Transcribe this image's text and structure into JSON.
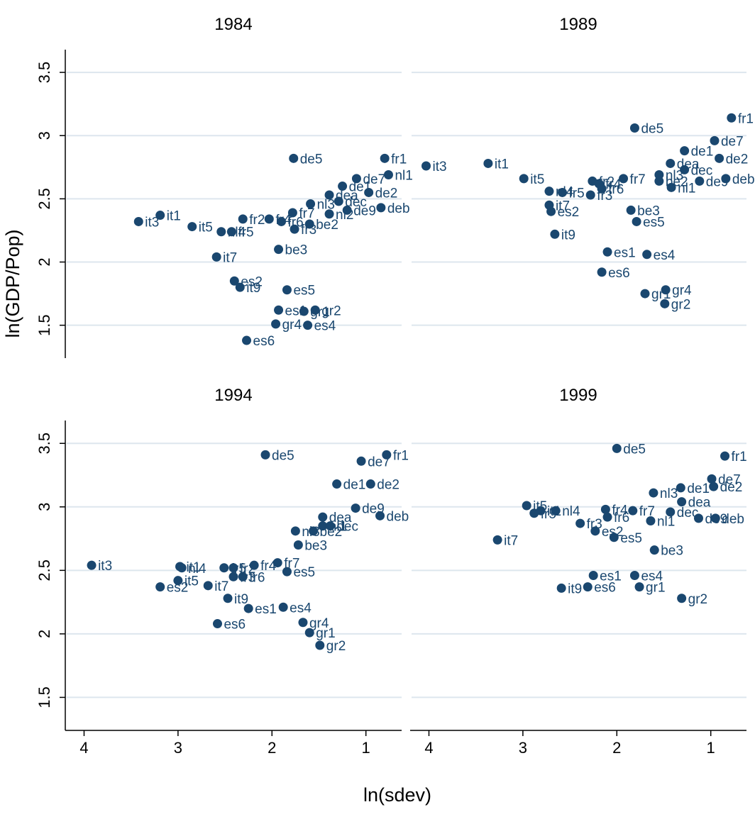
{
  "ylabel": "ln(GDP/Pop)",
  "xlabel": "ln(sdev)",
  "chart_data": [
    {
      "type": "scatter",
      "title": "1984",
      "color": "#1a476f",
      "grid": true,
      "xlim": [
        4.2,
        0.62
      ],
      "ylim": [
        1.24,
        3.68
      ],
      "xticks": [
        4,
        3,
        2,
        1
      ],
      "yticks": [
        1.5,
        2,
        2.5,
        3,
        3.5
      ],
      "labels": [
        "it3",
        "it1",
        "it5",
        "nl4",
        "fr5",
        "it7",
        "fr2",
        "fr4",
        "es2",
        "it9",
        "de5",
        "fr7",
        "fr6",
        "fr3",
        "nl3",
        "be2",
        "be3",
        "es5",
        "es1",
        "gr1",
        "gr2",
        "gr4",
        "es4",
        "es6",
        "dea",
        "dec",
        "de1",
        "nl2",
        "de9",
        "de7",
        "de2",
        "deb",
        "fr1",
        "nl1"
      ],
      "x": [
        3.42,
        3.19,
        2.85,
        2.54,
        2.43,
        2.59,
        2.31,
        2.03,
        2.4,
        2.34,
        1.77,
        1.78,
        1.9,
        1.76,
        1.59,
        1.6,
        1.93,
        1.84,
        1.93,
        1.66,
        1.54,
        1.96,
        1.62,
        2.27,
        1.39,
        1.29,
        1.25,
        1.39,
        1.2,
        1.1,
        0.97,
        0.84,
        0.8,
        0.76
      ],
      "y": [
        2.32,
        2.37,
        2.28,
        2.24,
        2.24,
        2.04,
        2.34,
        2.34,
        1.85,
        1.8,
        2.82,
        2.39,
        2.32,
        2.26,
        2.46,
        2.3,
        2.1,
        1.78,
        1.62,
        1.61,
        1.62,
        1.51,
        1.5,
        1.38,
        2.53,
        2.48,
        2.6,
        2.38,
        2.41,
        2.66,
        2.55,
        2.43,
        2.82,
        2.69
      ]
    },
    {
      "type": "scatter",
      "title": "1989",
      "color": "#1a476f",
      "grid": true,
      "xlim": [
        4.2,
        0.62
      ],
      "ylim": [
        1.24,
        3.68
      ],
      "xticks": [
        4,
        3,
        2,
        1
      ],
      "yticks": [
        1.5,
        2,
        2.5,
        3,
        3.5
      ],
      "labels": [
        "it3",
        "it1",
        "it5",
        "nl4",
        "fr5",
        "it7",
        "es2",
        "it9",
        "fr2",
        "fr4",
        "fr3",
        "fr6",
        "fr7",
        "de5",
        "be3",
        "es5",
        "es1",
        "es4",
        "es6",
        "gr1",
        "gr4",
        "gr2",
        "nl3",
        "be2",
        "dea",
        "de1",
        "dec",
        "nl1",
        "de9",
        "fr1",
        "de7",
        "de2",
        "deb"
      ],
      "x": [
        4.03,
        3.37,
        2.99,
        2.72,
        2.58,
        2.72,
        2.7,
        2.66,
        2.26,
        2.19,
        2.28,
        2.16,
        1.93,
        1.81,
        1.85,
        1.79,
        2.1,
        1.68,
        2.16,
        1.7,
        1.48,
        1.49,
        1.55,
        1.55,
        1.43,
        1.28,
        1.28,
        1.42,
        1.12,
        0.78,
        0.96,
        0.91,
        0.84
      ],
      "y": [
        2.76,
        2.78,
        2.66,
        2.56,
        2.55,
        2.45,
        2.4,
        2.22,
        2.64,
        2.62,
        2.53,
        2.58,
        2.66,
        3.06,
        2.41,
        2.32,
        2.08,
        2.06,
        1.92,
        1.75,
        1.78,
        1.67,
        2.69,
        2.64,
        2.78,
        2.88,
        2.73,
        2.59,
        2.64,
        3.14,
        2.96,
        2.82,
        2.66
      ]
    },
    {
      "type": "scatter",
      "title": "1994",
      "color": "#1a476f",
      "grid": true,
      "xlim": [
        4.2,
        0.62
      ],
      "ylim": [
        1.24,
        3.68
      ],
      "xticks": [
        4,
        3,
        2,
        1
      ],
      "yticks": [
        1.5,
        2,
        2.5,
        3,
        3.5
      ],
      "labels": [
        "it3",
        "it1",
        "nl4",
        "it5",
        "es2",
        "it7",
        "fr5",
        "fr2",
        "fr3",
        "fr6",
        "fr4",
        "fr7",
        "de5",
        "it9",
        "es1",
        "es6",
        "es4",
        "es5",
        "be3",
        "nl3",
        "be2",
        "gr4",
        "gr1",
        "gr2",
        "nl1",
        "dea",
        "dec",
        "de1",
        "de9",
        "de7",
        "de2",
        "fr1",
        "deb"
      ],
      "x": [
        3.92,
        2.98,
        2.96,
        3.0,
        3.19,
        2.68,
        2.51,
        2.41,
        2.41,
        2.31,
        2.19,
        1.94,
        2.07,
        2.47,
        2.25,
        2.58,
        1.88,
        1.84,
        1.72,
        1.75,
        1.56,
        1.67,
        1.6,
        1.49,
        1.46,
        1.46,
        1.38,
        1.31,
        1.11,
        1.05,
        0.95,
        0.78,
        0.85
      ],
      "y": [
        2.54,
        2.53,
        2.52,
        2.42,
        2.37,
        2.38,
        2.52,
        2.52,
        2.45,
        2.45,
        2.54,
        2.56,
        3.41,
        2.28,
        2.2,
        2.08,
        2.21,
        2.49,
        2.7,
        2.81,
        2.81,
        2.09,
        2.01,
        1.91,
        2.85,
        2.92,
        2.85,
        3.18,
        2.99,
        3.36,
        3.18,
        3.41,
        2.93
      ]
    },
    {
      "type": "scatter",
      "title": "1999",
      "color": "#1a476f",
      "grid": true,
      "xlim": [
        4.2,
        0.62
      ],
      "ylim": [
        1.24,
        3.68
      ],
      "xticks": [
        4,
        3,
        2,
        1
      ],
      "yticks": [
        1.5,
        2,
        2.5,
        3,
        3.5
      ],
      "labels": [
        "fr1",
        "de5",
        "de7",
        "de2",
        "de1",
        "nl3",
        "dea",
        "dec",
        "nl1",
        "deb",
        "de9",
        "fr7",
        "fr4",
        "fr6",
        "fr3",
        "es2",
        "es5",
        "be3",
        "it1",
        "nl4",
        "fr5",
        "it5",
        "it7",
        "it9",
        "es1",
        "es4",
        "es6",
        "gr1",
        "gr2"
      ],
      "x": [
        0.85,
        2.0,
        0.99,
        0.97,
        1.32,
        1.61,
        1.31,
        1.43,
        1.64,
        0.95,
        1.13,
        1.83,
        2.12,
        2.1,
        2.39,
        2.23,
        2.03,
        1.6,
        2.81,
        2.65,
        2.88,
        2.96,
        3.27,
        2.59,
        2.25,
        1.81,
        2.31,
        1.76,
        1.31
      ],
      "y": [
        3.4,
        3.46,
        3.22,
        3.16,
        3.15,
        3.11,
        3.04,
        2.96,
        2.89,
        2.91,
        2.91,
        2.97,
        2.98,
        2.92,
        2.87,
        2.81,
        2.76,
        2.66,
        2.97,
        2.97,
        2.95,
        3.01,
        2.74,
        2.36,
        2.46,
        2.46,
        2.37,
        2.37,
        2.28
      ]
    }
  ]
}
